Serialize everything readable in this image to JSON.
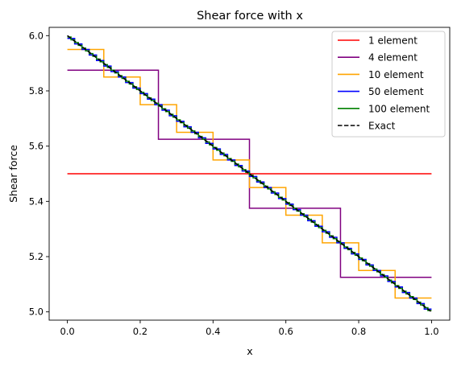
{
  "chart_data": {
    "type": "line",
    "title": "Shear force with x",
    "xlabel": "x",
    "ylabel": "Shear force",
    "xlim": [
      -0.05,
      1.05
    ],
    "ylim": [
      4.97,
      6.03
    ],
    "xticks": [
      0.0,
      0.2,
      0.4,
      0.6,
      0.8,
      1.0
    ],
    "xtick_labels": [
      "0.0",
      "0.2",
      "0.4",
      "0.6",
      "0.8",
      "1.0"
    ],
    "yticks": [
      5.0,
      5.2,
      5.4,
      5.6,
      5.8,
      6.0
    ],
    "ytick_labels": [
      "5.0",
      "5.2",
      "5.4",
      "5.6",
      "5.8",
      "6.0"
    ],
    "grid": false,
    "legend_position": "top-right",
    "series": [
      {
        "name": "1 element",
        "color": "#ff0000",
        "style": "solid",
        "kind": "step",
        "elements": 1,
        "values": [
          5.5
        ]
      },
      {
        "name": "4 element",
        "color": "#800080",
        "style": "solid",
        "kind": "step",
        "elements": 4,
        "values": [
          5.875,
          5.625,
          5.375,
          5.125
        ]
      },
      {
        "name": "10 element",
        "color": "#ffa500",
        "style": "solid",
        "kind": "step",
        "elements": 10,
        "values": [
          5.95,
          5.85,
          5.75,
          5.65,
          5.55,
          5.45,
          5.35,
          5.25,
          5.15,
          5.05
        ]
      },
      {
        "name": "50 element",
        "color": "#0000ff",
        "style": "solid",
        "kind": "step",
        "elements": 50,
        "values": []
      },
      {
        "name": "100 element",
        "color": "#008000",
        "style": "solid",
        "kind": "step",
        "elements": 100,
        "values": []
      },
      {
        "name": "Exact",
        "color": "#000000",
        "style": "dashed",
        "kind": "line",
        "x": [
          0.0,
          1.0
        ],
        "y": [
          6.0,
          5.0
        ]
      }
    ]
  }
}
